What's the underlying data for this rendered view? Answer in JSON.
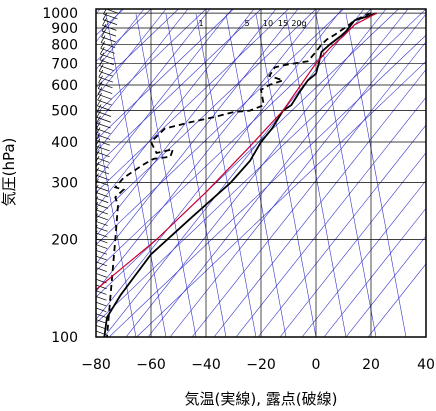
{
  "chart_data": {
    "type": "line",
    "title": "",
    "xlabel": "気温(実線), 露点(破線)",
    "ylabel": "気圧(hPa)",
    "xlim": [
      -80,
      40
    ],
    "ylim": [
      1030,
      100
    ],
    "yscale": "log",
    "grid": true,
    "x_ticks": [
      "−80",
      "−60",
      "−40",
      "−20",
      "0",
      "20",
      "40"
    ],
    "y_ticks": [
      "100",
      "200",
      "300",
      "400",
      "500",
      "600",
      "700",
      "800",
      "900",
      "1000"
    ],
    "mixing_ratio_labels": [
      "1",
      "5",
      "10",
      "15",
      "20g"
    ],
    "colors": {
      "temperature": "#000000",
      "dewpoint": "#000000",
      "parcel": "#cc0033",
      "background_lines": "#3333cc",
      "grid": "#000000"
    },
    "series": [
      {
        "name": "",
        "role": "temperature",
        "style": "solid",
        "points": [
          [
            22,
            1000
          ],
          [
            20,
            985
          ],
          [
            14,
            950
          ],
          [
            13,
            925
          ],
          [
            11,
            880
          ],
          [
            9,
            850
          ],
          [
            5,
            800
          ],
          [
            2,
            760
          ],
          [
            1,
            700
          ],
          [
            0,
            650
          ],
          [
            -3,
            620
          ],
          [
            -6,
            570
          ],
          [
            -9,
            520
          ],
          [
            -12,
            500
          ],
          [
            -16,
            440
          ],
          [
            -20,
            400
          ],
          [
            -24,
            350
          ],
          [
            -31,
            300
          ],
          [
            -45,
            235
          ],
          [
            -60,
            180
          ],
          [
            -67,
            150
          ],
          [
            -71,
            135
          ],
          [
            -76,
            115
          ],
          [
            -77,
            100
          ]
        ]
      },
      {
        "name": "",
        "role": "dewpoint",
        "style": "dashed",
        "points": [
          [
            20,
            1000
          ],
          [
            18,
            985
          ],
          [
            14,
            950
          ],
          [
            12,
            920
          ],
          [
            7,
            860
          ],
          [
            4,
            830
          ],
          [
            2,
            800
          ],
          [
            0,
            760
          ],
          [
            -3,
            710
          ],
          [
            -12,
            690
          ],
          [
            -15,
            680
          ],
          [
            -17,
            640
          ],
          [
            -12,
            620
          ],
          [
            -17,
            600
          ],
          [
            -20,
            580
          ],
          [
            -19,
            520
          ],
          [
            -24,
            500
          ],
          [
            -30,
            495
          ],
          [
            -36,
            480
          ],
          [
            -46,
            460
          ],
          [
            -55,
            440
          ],
          [
            -60,
            400
          ],
          [
            -58,
            370
          ],
          [
            -52,
            380
          ],
          [
            -53,
            360
          ],
          [
            -59,
            355
          ],
          [
            -63,
            340
          ],
          [
            -70,
            310
          ],
          [
            -73,
            290
          ],
          [
            -70,
            285
          ],
          [
            -73,
            270
          ],
          [
            -72,
            255
          ],
          [
            -73,
            200
          ],
          [
            -76,
            100
          ]
        ]
      },
      {
        "name": "",
        "role": "parcel",
        "style": "solid",
        "points": [
          [
            22,
            1000
          ],
          [
            14,
            920
          ],
          [
            10,
            850
          ],
          [
            5,
            780
          ],
          [
            0,
            700
          ],
          [
            -12,
            500
          ],
          [
            -25,
            380
          ],
          [
            -40,
            280
          ],
          [
            -58,
            200
          ],
          [
            -80,
            140
          ]
        ]
      }
    ],
    "wind_barbs": "right side profile from 1000 to 100 hPa"
  }
}
